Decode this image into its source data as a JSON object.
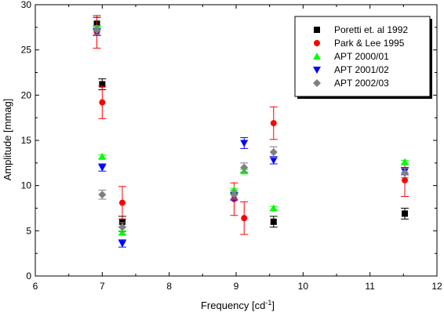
{
  "chart_data": {
    "type": "scatter",
    "xlabel": "Frequency [cd",
    "xlabel_sup": "-1",
    "xlabel_close": "]",
    "ylabel": "Amplitude [mmag]",
    "xlim": [
      6,
      12
    ],
    "ylim": [
      0,
      30
    ],
    "xticks": [
      6,
      7,
      8,
      9,
      10,
      11,
      12
    ],
    "yticks": [
      0,
      5,
      10,
      15,
      20,
      25,
      30
    ],
    "grid": false,
    "legend_position": "top-right",
    "series": [
      {
        "name": "Poretti et. al 1992",
        "marker": "square",
        "color": "#000000",
        "points": [
          {
            "x": 6.92,
            "y": 27.9,
            "err": 0.7
          },
          {
            "x": 7.0,
            "y": 21.2,
            "err": 0.6
          },
          {
            "x": 7.3,
            "y": 6.0,
            "err": 0.6
          },
          {
            "x": 9.56,
            "y": 6.0,
            "err": 0.6
          },
          {
            "x": 11.52,
            "y": 6.9,
            "err": 0.6
          }
        ]
      },
      {
        "name": "Park & Lee 1995",
        "marker": "circle",
        "color": "#ff0000",
        "points": [
          {
            "x": 6.92,
            "y": 27.0,
            "err": 1.8
          },
          {
            "x": 7.0,
            "y": 19.2,
            "err": 1.8
          },
          {
            "x": 7.3,
            "y": 8.1,
            "err": 1.8
          },
          {
            "x": 8.97,
            "y": 8.5,
            "err": 1.8
          },
          {
            "x": 9.12,
            "y": 6.4,
            "err": 1.8
          },
          {
            "x": 9.56,
            "y": 16.9,
            "err": 1.8
          },
          {
            "x": 11.52,
            "y": 10.6,
            "err": 1.8
          }
        ]
      },
      {
        "name": "APT 2000/01",
        "marker": "triangle-up",
        "color": "#00ff00",
        "points": [
          {
            "x": 6.92,
            "y": 27.4,
            "err": 0.2
          },
          {
            "x": 7.0,
            "y": 13.2,
            "err": 0.2
          },
          {
            "x": 7.3,
            "y": 4.8,
            "err": 0.2
          },
          {
            "x": 8.97,
            "y": 9.5,
            "err": 0.2
          },
          {
            "x": 9.12,
            "y": 11.6,
            "err": 0.2
          },
          {
            "x": 9.56,
            "y": 7.5,
            "err": 0.2
          },
          {
            "x": 11.52,
            "y": 12.6,
            "err": 0.2
          }
        ]
      },
      {
        "name": "APT 2001/02",
        "marker": "triangle-down",
        "color": "#0000ff",
        "points": [
          {
            "x": 6.92,
            "y": 27.0,
            "err": 0.4
          },
          {
            "x": 7.0,
            "y": 12.0,
            "err": 0.4
          },
          {
            "x": 7.3,
            "y": 3.6,
            "err": 0.4
          },
          {
            "x": 8.97,
            "y": 8.8,
            "err": 0.4
          },
          {
            "x": 9.12,
            "y": 14.7,
            "err": 0.6
          },
          {
            "x": 9.56,
            "y": 12.8,
            "err": 0.4
          },
          {
            "x": 11.52,
            "y": 11.6,
            "err": 0.4
          }
        ]
      },
      {
        "name": "APT 2002/03",
        "marker": "diamond",
        "color": "#808080",
        "points": [
          {
            "x": 6.92,
            "y": 27.2,
            "err": 0.5
          },
          {
            "x": 7.0,
            "y": 9.0,
            "err": 0.5
          },
          {
            "x": 7.3,
            "y": 5.4,
            "err": 0.5
          },
          {
            "x": 8.97,
            "y": 9.0,
            "err": 0.5
          },
          {
            "x": 9.12,
            "y": 12.0,
            "err": 0.5
          },
          {
            "x": 9.56,
            "y": 13.7,
            "err": 0.6
          },
          {
            "x": 11.52,
            "y": 11.4,
            "err": 0.5
          }
        ]
      }
    ]
  }
}
